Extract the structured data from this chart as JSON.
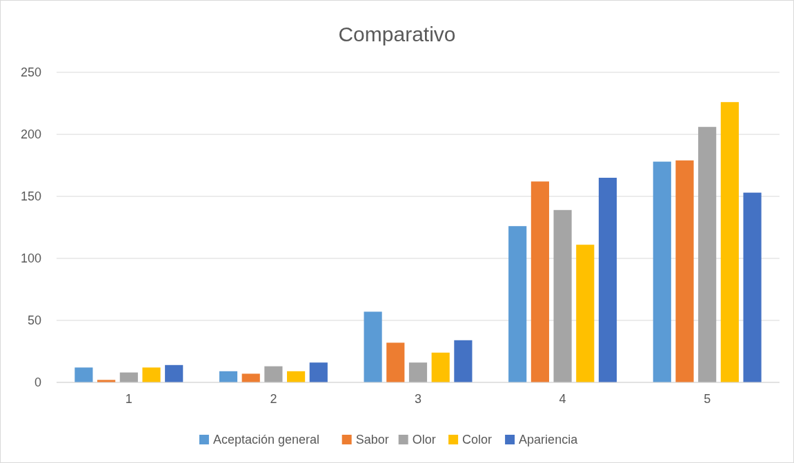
{
  "chart_data": {
    "type": "bar",
    "title": "Comparativo",
    "categories": [
      "1",
      "2",
      "3",
      "4",
      "5"
    ],
    "series": [
      {
        "name": "Aceptación general",
        "color": "#5b9bd5",
        "values": [
          12,
          9,
          57,
          126,
          178
        ]
      },
      {
        "name": "Sabor",
        "color": "#ed7d31",
        "values": [
          2,
          7,
          32,
          162,
          179
        ]
      },
      {
        "name": "Olor",
        "color": "#a5a5a5",
        "values": [
          8,
          13,
          16,
          139,
          206
        ]
      },
      {
        "name": "Color",
        "color": "#ffc000",
        "values": [
          12,
          9,
          24,
          111,
          226
        ]
      },
      {
        "name": "Apariencia",
        "color": "#4472c4",
        "values": [
          14,
          16,
          34,
          165,
          153
        ]
      }
    ],
    "ylim": [
      0,
      250
    ],
    "yticks": [
      0,
      50,
      100,
      150,
      200,
      250
    ],
    "grid": "y",
    "legend": "bottom"
  }
}
